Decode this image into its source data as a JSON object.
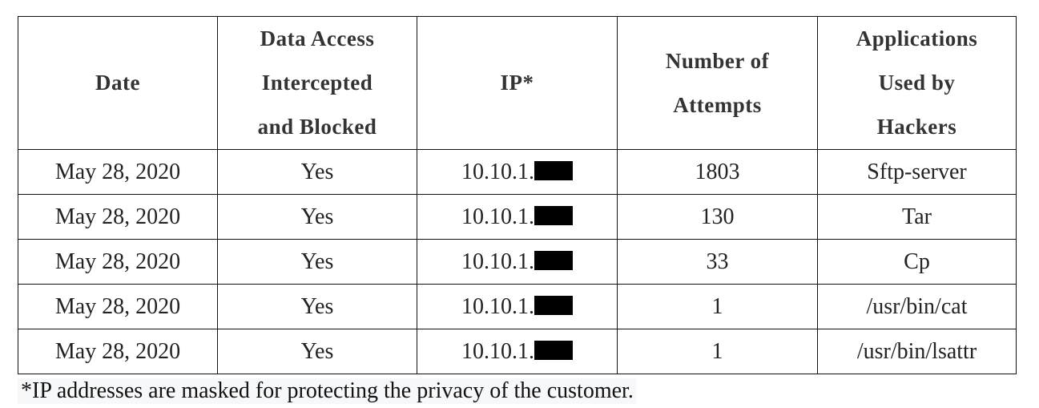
{
  "table": {
    "headers": [
      "Date",
      "Data Access Intercepted and Blocked",
      "IP*",
      "Number of Attempts",
      "Applications Used by Hackers"
    ],
    "rows": [
      {
        "date": "May 28, 2020",
        "blocked": "Yes",
        "ip": "10.10.1.",
        "attempts": "1803",
        "app": "Sftp-server"
      },
      {
        "date": "May 28, 2020",
        "blocked": "Yes",
        "ip": "10.10.1.",
        "attempts": "130",
        "app": "Tar"
      },
      {
        "date": "May 28, 2020",
        "blocked": "Yes",
        "ip": "10.10.1.",
        "attempts": "33",
        "app": "Cp"
      },
      {
        "date": "May 28, 2020",
        "blocked": "Yes",
        "ip": "10.10.1.",
        "attempts": "1",
        "app": "/usr/bin/cat"
      },
      {
        "date": "May 28, 2020",
        "blocked": "Yes",
        "ip": "10.10.1.",
        "attempts": "1",
        "app": "/usr/bin/lsattr"
      }
    ]
  },
  "footnote": "*IP addresses are masked for protecting the privacy of the customer."
}
